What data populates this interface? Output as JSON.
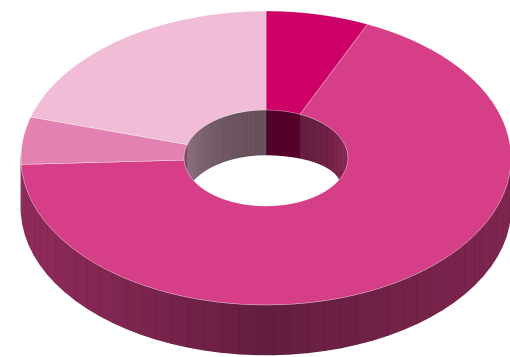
{
  "chart_data": {
    "type": "pie",
    "variant": "3d-donut",
    "title": "",
    "legend": "none",
    "slices": [
      {
        "value": 6.8,
        "color": "#cc0066"
      },
      {
        "value": 67.5,
        "color": "#d63f87"
      },
      {
        "value": 5.2,
        "color": "#e382b2"
      },
      {
        "value": 20.5,
        "color": "#f0bcd6"
      }
    ],
    "start_angle_deg": 90,
    "direction": "clockwise"
  }
}
